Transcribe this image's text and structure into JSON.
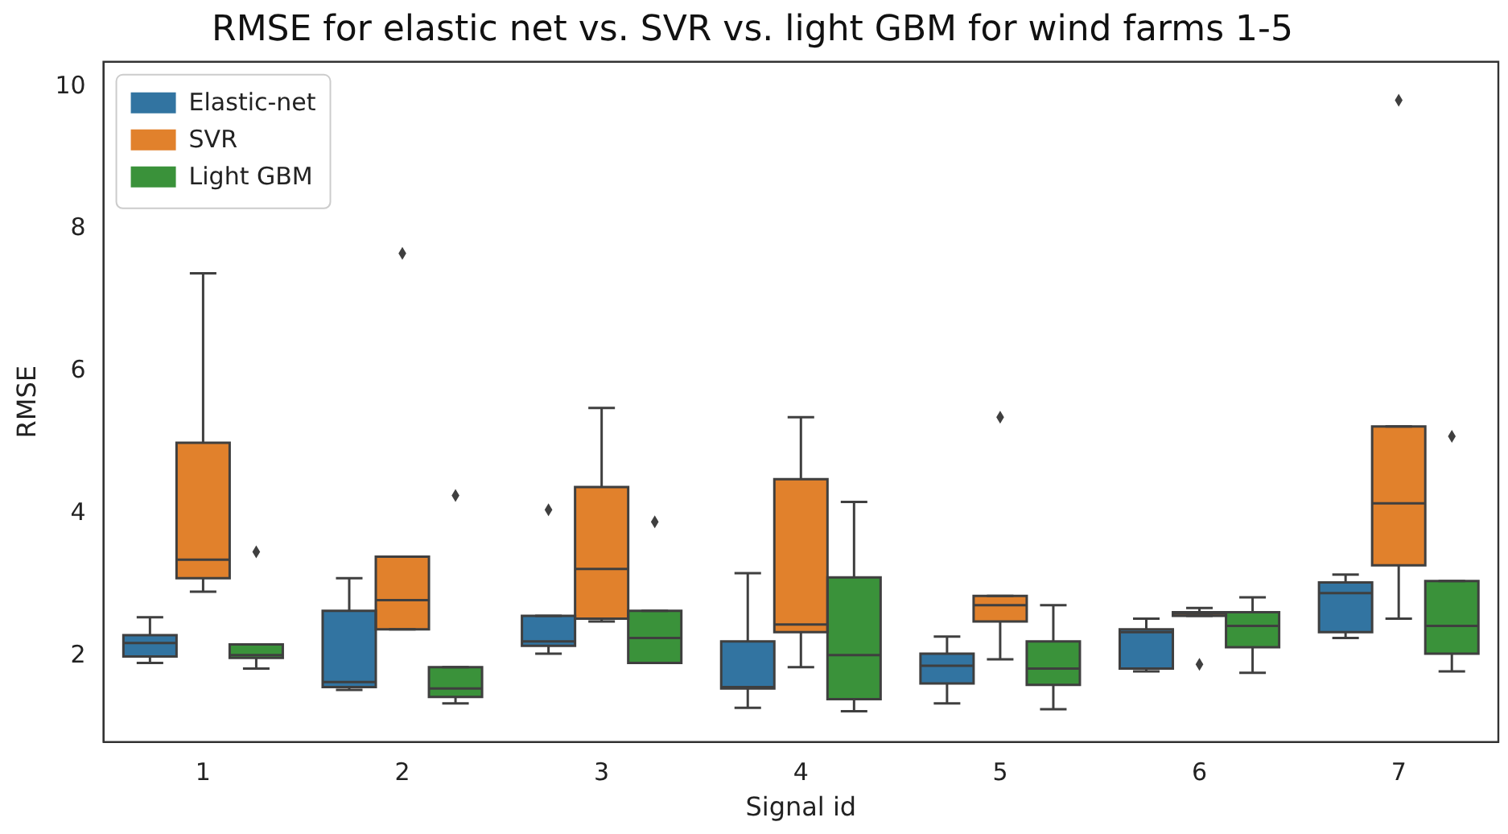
{
  "chart_data": {
    "type": "box",
    "title": "RMSE for elastic net vs. SVR vs. light GBM for wind farms 1-5",
    "xlabel": "Signal id",
    "ylabel": "RMSE",
    "categories": [
      "1",
      "2",
      "3",
      "4",
      "5",
      "6",
      "7"
    ],
    "ylim": [
      0.8,
      10.35
    ],
    "yticks": [
      2,
      4,
      6,
      8,
      10
    ],
    "grid": false,
    "legend": "top left",
    "marker": "diamond",
    "series": [
      {
        "name": "Elastic-net",
        "color": "#3274a1",
        "boxes": [
          {
            "low": 1.91,
            "q1": 2.0,
            "median": 2.19,
            "q3": 2.3,
            "high": 2.55
          },
          {
            "low": 1.53,
            "q1": 1.57,
            "median": 1.64,
            "q3": 2.64,
            "high": 3.1
          },
          {
            "low": 2.04,
            "q1": 2.15,
            "median": 2.21,
            "q3": 2.57,
            "high": 2.57,
            "outliers": [
              4.06
            ]
          },
          {
            "low": 1.28,
            "q1": 1.55,
            "median": 1.57,
            "q3": 2.21,
            "high": 3.17
          },
          {
            "low": 1.34,
            "q1": 1.62,
            "median": 1.87,
            "q3": 2.04,
            "high": 2.28
          },
          {
            "low": 1.79,
            "q1": 1.83,
            "median": 2.34,
            "q3": 2.38,
            "high": 2.53
          },
          {
            "low": 2.26,
            "q1": 2.34,
            "median": 2.89,
            "q3": 3.04,
            "high": 3.15
          }
        ]
      },
      {
        "name": "SVR",
        "color": "#e1812c",
        "boxes": [
          {
            "low": 2.91,
            "q1": 3.1,
            "median": 3.36,
            "q3": 5.0,
            "high": 7.38
          },
          {
            "low": 2.38,
            "q1": 2.38,
            "median": 2.79,
            "q3": 3.4,
            "high": 3.4,
            "outliers": [
              7.66
            ]
          },
          {
            "low": 2.49,
            "q1": 2.53,
            "median": 3.23,
            "q3": 4.38,
            "high": 5.49
          },
          {
            "low": 1.85,
            "q1": 2.34,
            "median": 2.45,
            "q3": 4.49,
            "high": 5.36
          },
          {
            "low": 1.96,
            "q1": 2.49,
            "median": 2.72,
            "q3": 2.85,
            "high": 2.85,
            "outliers": [
              5.36
            ]
          },
          {
            "low": 2.57,
            "q1": 2.57,
            "median": 2.6,
            "q3": 2.62,
            "high": 2.68,
            "outliers": [
              1.89
            ]
          },
          {
            "low": 2.53,
            "q1": 3.28,
            "median": 4.15,
            "q3": 5.23,
            "high": 5.23,
            "outliers": [
              9.81
            ]
          }
        ]
      },
      {
        "name": "Light GBM",
        "color": "#3a923a",
        "boxes": [
          {
            "low": 1.83,
            "q1": 1.98,
            "median": 2.02,
            "q3": 2.17,
            "high": 2.17,
            "outliers": [
              3.47
            ]
          },
          {
            "low": 1.34,
            "q1": 1.43,
            "median": 1.55,
            "q3": 1.85,
            "high": 1.85,
            "outliers": [
              4.26
            ]
          },
          {
            "low": 1.91,
            "q1": 1.91,
            "median": 2.26,
            "q3": 2.64,
            "high": 2.64,
            "outliers": [
              3.89
            ]
          },
          {
            "low": 1.23,
            "q1": 1.4,
            "median": 2.02,
            "q3": 3.11,
            "high": 4.17
          },
          {
            "low": 1.26,
            "q1": 1.6,
            "median": 1.83,
            "q3": 2.21,
            "high": 2.72
          },
          {
            "low": 1.77,
            "q1": 2.13,
            "median": 2.43,
            "q3": 2.62,
            "high": 2.83
          },
          {
            "low": 1.79,
            "q1": 2.04,
            "median": 2.43,
            "q3": 3.06,
            "high": 3.06,
            "outliers": [
              5.09
            ]
          }
        ]
      }
    ]
  }
}
